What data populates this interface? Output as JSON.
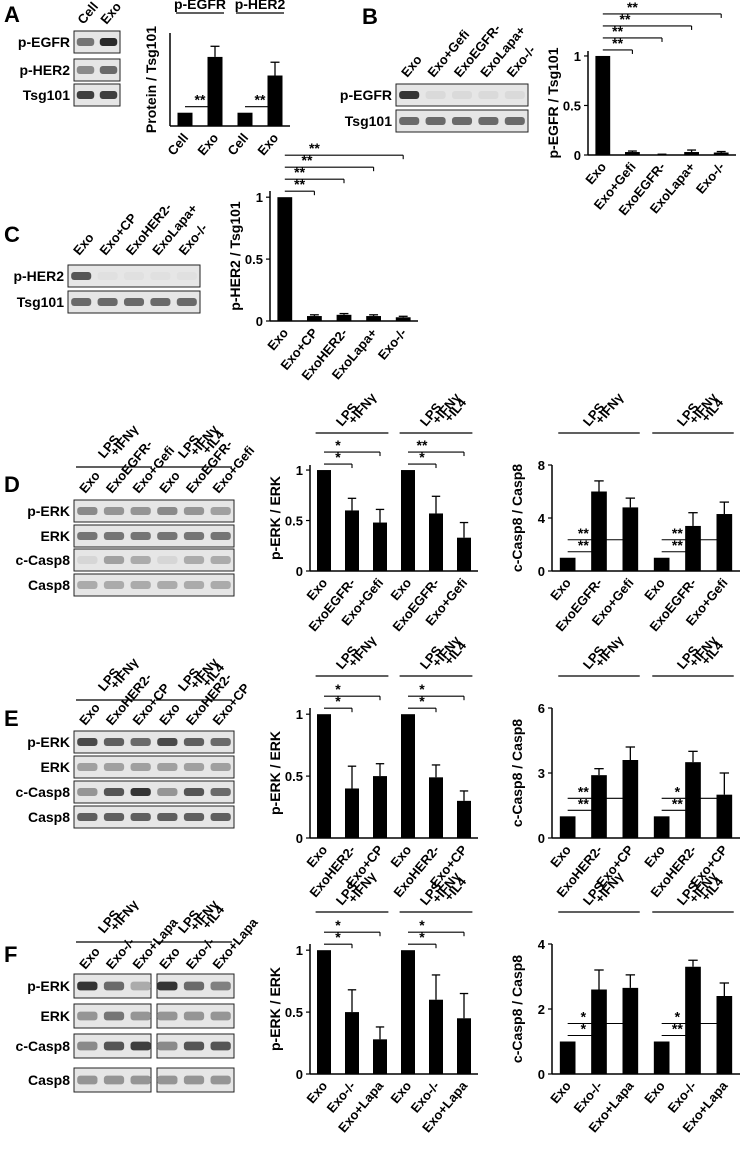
{
  "panels": [
    {
      "letter": "A",
      "blot": {
        "lanes": [
          "Cell",
          "Exo"
        ],
        "rows": [
          {
            "label": "p-EGFR",
            "bands": [
              0.55,
              0.9
            ]
          },
          {
            "label": "p-HER2",
            "bands": [
              0.45,
              0.6
            ]
          },
          {
            "label": "Tsg101",
            "bands": [
              0.8,
              0.8
            ]
          }
        ]
      },
      "charts": [
        {
          "type": "bar",
          "ylabel": "Protein / Tsg101",
          "ylim": [
            0,
            7
          ],
          "yticks": [],
          "categories": [
            "Cell",
            "Exo",
            "Cell",
            "Exo"
          ],
          "values": [
            1.0,
            5.2,
            1.0,
            3.8
          ],
          "errors": [
            0,
            0.8,
            0,
            1.0
          ],
          "groups": [
            {
              "label": "p-EGFR",
              "from": 0,
              "to": 1
            },
            {
              "label": "p-HER2",
              "from": 2,
              "to": 3
            }
          ],
          "sig": [
            {
              "a": 0,
              "b": 1,
              "mark": "**"
            },
            {
              "a": 2,
              "b": 3,
              "mark": "**"
            }
          ]
        }
      ]
    },
    {
      "letter": "B",
      "blot": {
        "lanes": [
          "Exo",
          "Exo+Gefi",
          "ExoEGFR-",
          "ExoLapa+",
          "Exo-/-"
        ],
        "rows": [
          {
            "label": "p-EGFR",
            "bands": [
              0.85,
              0.08,
              0.08,
              0.08,
              0.08
            ]
          },
          {
            "label": "Tsg101",
            "bands": [
              0.6,
              0.6,
              0.6,
              0.6,
              0.6
            ]
          }
        ]
      },
      "charts": [
        {
          "type": "bar",
          "ylabel": "p-EGFR / Tsg101",
          "ylim": [
            0,
            1.05
          ],
          "yticks": [
            0,
            0.5,
            1
          ],
          "categories": [
            "Exo",
            "Exo+Gefi",
            "ExoEGFR-",
            "ExoLapa+",
            "Exo-/-"
          ],
          "values": [
            1.0,
            0.03,
            0.005,
            0.03,
            0.025
          ],
          "errors": [
            0,
            0.01,
            0.003,
            0.02,
            0.01
          ],
          "groups": [],
          "sig": [
            {
              "a": 0,
              "b": 1,
              "mark": "**"
            },
            {
              "a": 0,
              "b": 2,
              "mark": "**"
            },
            {
              "a": 0,
              "b": 3,
              "mark": "**"
            },
            {
              "a": 0,
              "b": 4,
              "mark": "**"
            }
          ]
        }
      ]
    },
    {
      "letter": "C",
      "blot": {
        "lanes": [
          "Exo",
          "Exo+CP",
          "ExoHER2-",
          "ExoLapa+",
          "Exo-/-"
        ],
        "rows": [
          {
            "label": "p-HER2",
            "bands": [
              0.7,
              0.05,
              0.05,
              0.05,
              0.05
            ]
          },
          {
            "label": "Tsg101",
            "bands": [
              0.6,
              0.6,
              0.6,
              0.6,
              0.6
            ]
          }
        ]
      },
      "charts": [
        {
          "type": "bar",
          "ylabel": "p-HER2 / Tsg101",
          "ylim": [
            0,
            1.05
          ],
          "yticks": [
            0,
            0.5,
            1
          ],
          "categories": [
            "Exo",
            "Exo+CP",
            "ExoHER2-",
            "ExoLapa+",
            "Exo-/-"
          ],
          "values": [
            1.0,
            0.04,
            0.05,
            0.04,
            0.03
          ],
          "errors": [
            0,
            0.01,
            0.01,
            0.01,
            0.008
          ],
          "groups": [],
          "sig": [
            {
              "a": 0,
              "b": 1,
              "mark": "**"
            },
            {
              "a": 0,
              "b": 2,
              "mark": "**"
            },
            {
              "a": 0,
              "b": 3,
              "mark": "**"
            },
            {
              "a": 0,
              "b": 4,
              "mark": "**"
            }
          ]
        }
      ]
    },
    {
      "letter": "D",
      "blot": {
        "groups": [
          {
            "label": [
              "LPS",
              "+IFNγ"
            ],
            "from": 0,
            "to": 2
          },
          {
            "label": [
              "LPS",
              "+IFNγ",
              "+IL4"
            ],
            "from": 3,
            "to": 5
          }
        ],
        "lanes": [
          "Exo",
          "ExoEGFR-",
          "Exo+Gefi",
          "Exo",
          "ExoEGFR-",
          "Exo+Gefi"
        ],
        "rows": [
          {
            "label": "p-ERK",
            "bands": [
              0.45,
              0.4,
              0.4,
              0.45,
              0.4,
              0.35
            ]
          },
          {
            "label": "ERK",
            "bands": [
              0.55,
              0.55,
              0.55,
              0.55,
              0.55,
              0.55
            ]
          },
          {
            "label": "c-Casp8",
            "bands": [
              0.1,
              0.35,
              0.3,
              0.1,
              0.3,
              0.3
            ]
          },
          {
            "label": "Casp8",
            "bands": [
              0.3,
              0.3,
              0.3,
              0.3,
              0.3,
              0.3
            ]
          }
        ]
      },
      "charts": [
        {
          "type": "bar",
          "ylabel": "p-ERK / ERK",
          "ylim": [
            0,
            1.05
          ],
          "yticks": [
            0,
            0.5,
            1
          ],
          "categories": [
            "Exo",
            "ExoEGFR-",
            "Exo+Gefi",
            "Exo",
            "ExoEGFR-",
            "Exo+Gefi"
          ],
          "values": [
            1.0,
            0.6,
            0.48,
            1.0,
            0.57,
            0.33
          ],
          "errors": [
            0,
            0.12,
            0.13,
            0,
            0.17,
            0.15
          ],
          "groups": [
            {
              "label": [
                "LPS",
                "+IFNγ"
              ],
              "from": 0,
              "to": 2
            },
            {
              "label": [
                "LPS",
                "+IFNγ",
                "+IL4"
              ],
              "from": 3,
              "to": 5
            }
          ],
          "sig": [
            {
              "a": 0,
              "b": 1,
              "mark": "*"
            },
            {
              "a": 0,
              "b": 2,
              "mark": "*"
            },
            {
              "a": 3,
              "b": 4,
              "mark": "*"
            },
            {
              "a": 3,
              "b": 5,
              "mark": "**"
            }
          ]
        },
        {
          "type": "bar",
          "ylabel": "c-Casp8 / Casp8",
          "ylim": [
            0,
            8
          ],
          "yticks": [
            0,
            4,
            8
          ],
          "categories": [
            "Exo",
            "ExoEGFR-",
            "Exo+Gefi",
            "Exo",
            "ExoEGFR-",
            "Exo+Gefi"
          ],
          "values": [
            1.0,
            6.0,
            4.8,
            1.0,
            3.4,
            4.3
          ],
          "errors": [
            0,
            0.8,
            0.7,
            0,
            1.0,
            0.9
          ],
          "groups": [
            {
              "label": [
                "LPS",
                "+IFNγ"
              ],
              "from": 0,
              "to": 2
            },
            {
              "label": [
                "LPS",
                "+IFNγ",
                "+IL4"
              ],
              "from": 3,
              "to": 5
            }
          ],
          "sig": [
            {
              "a": 0,
              "b": 1,
              "mark": "**"
            },
            {
              "a": 0,
              "b": 2,
              "mark": "**"
            },
            {
              "a": 3,
              "b": 4,
              "mark": "**"
            },
            {
              "a": 3,
              "b": 5,
              "mark": "**"
            }
          ]
        }
      ]
    },
    {
      "letter": "E",
      "blot": {
        "groups": [
          {
            "label": [
              "LPS",
              "+IFNγ"
            ],
            "from": 0,
            "to": 2
          },
          {
            "label": [
              "LPS",
              "+IFNγ",
              "+IL4"
            ],
            "from": 3,
            "to": 5
          }
        ],
        "lanes": [
          "Exo",
          "ExoHER2-",
          "Exo+CP",
          "Exo",
          "ExoHER2-",
          "Exo+CP"
        ],
        "rows": [
          {
            "label": "p-ERK",
            "bands": [
              0.75,
              0.65,
              0.6,
              0.75,
              0.65,
              0.6
            ]
          },
          {
            "label": "ERK",
            "bands": [
              0.35,
              0.35,
              0.35,
              0.35,
              0.35,
              0.35
            ]
          },
          {
            "label": "c-Casp8",
            "bands": [
              0.4,
              0.7,
              0.85,
              0.4,
              0.7,
              0.6
            ]
          },
          {
            "label": "Casp8",
            "bands": [
              0.65,
              0.65,
              0.65,
              0.65,
              0.65,
              0.65
            ]
          }
        ]
      },
      "charts": [
        {
          "type": "bar",
          "ylabel": "p-ERK / ERK",
          "ylim": [
            0,
            1.05
          ],
          "yticks": [
            0,
            0.5,
            1
          ],
          "categories": [
            "Exo",
            "ExoHER2-",
            "Exo+CP",
            "Exo",
            "ExoHER2-",
            "Exo+CP"
          ],
          "values": [
            1.0,
            0.4,
            0.5,
            1.0,
            0.49,
            0.3
          ],
          "errors": [
            0,
            0.18,
            0.1,
            0,
            0.1,
            0.08
          ],
          "groups": [
            {
              "label": [
                "LPS",
                "+IFNγ"
              ],
              "from": 0,
              "to": 2
            },
            {
              "label": [
                "LPS",
                "+IFNγ",
                "+IL4"
              ],
              "from": 3,
              "to": 5
            }
          ],
          "sig": [
            {
              "a": 0,
              "b": 1,
              "mark": "*"
            },
            {
              "a": 0,
              "b": 2,
              "mark": "*"
            },
            {
              "a": 3,
              "b": 4,
              "mark": "*"
            },
            {
              "a": 3,
              "b": 5,
              "mark": "*"
            }
          ]
        },
        {
          "type": "bar",
          "ylabel": "c-Casp8 / Casp8",
          "ylim": [
            0,
            6
          ],
          "yticks": [
            0,
            3,
            6
          ],
          "categories": [
            "Exo",
            "ExoHER2-",
            "Exo+CP",
            "Exo",
            "ExoHER2-",
            "Exo+CP"
          ],
          "values": [
            1.0,
            2.9,
            3.6,
            1.0,
            3.5,
            2.0
          ],
          "errors": [
            0,
            0.3,
            0.6,
            0,
            0.5,
            1.0
          ],
          "groups": [
            {
              "label": [
                "LPS",
                "+IFNγ"
              ],
              "from": 0,
              "to": 2
            },
            {
              "label": [
                "LPS",
                "+IFNγ",
                "+IL4"
              ],
              "from": 3,
              "to": 5
            }
          ],
          "sig": [
            {
              "a": 0,
              "b": 1,
              "mark": "**"
            },
            {
              "a": 0,
              "b": 2,
              "mark": "**"
            },
            {
              "a": 3,
              "b": 4,
              "mark": "**"
            },
            {
              "a": 3,
              "b": 5,
              "mark": "*"
            }
          ]
        }
      ]
    },
    {
      "letter": "F",
      "blot": {
        "groups": [
          {
            "label": [
              "LPS",
              "+IFNγ"
            ],
            "from": 0,
            "to": 2
          },
          {
            "label": [
              "LPS",
              "+IFNγ",
              "+IL4"
            ],
            "from": 3,
            "to": 5
          }
        ],
        "lanes": [
          "Exo",
          "Exo-/-",
          "Exo+Lapa",
          "Exo",
          "Exo-/-",
          "Exo+Lapa"
        ],
        "rows": [
          {
            "label": "p-ERK",
            "bands": [
              0.85,
              0.6,
              0.3,
              0.85,
              0.6,
              0.5
            ]
          },
          {
            "label": "ERK",
            "bands": [
              0.4,
              0.55,
              0.4,
              0.4,
              0.4,
              0.4
            ]
          },
          {
            "label": "c-Casp8",
            "bands": [
              0.45,
              0.7,
              0.8,
              0.45,
              0.7,
              0.7
            ]
          },
          {
            "label": "Casp8",
            "bands": [
              0.4,
              0.4,
              0.4,
              0.4,
              0.4,
              0.4
            ]
          }
        ]
      },
      "charts": [
        {
          "type": "bar",
          "ylabel": "p-ERK / ERK",
          "ylim": [
            0,
            1.05
          ],
          "yticks": [
            0,
            0.5,
            1
          ],
          "categories": [
            "Exo",
            "Exo-/-",
            "Exo+Lapa",
            "Exo",
            "Exo-/-",
            "Exo+Lapa"
          ],
          "values": [
            1.0,
            0.5,
            0.28,
            1.0,
            0.6,
            0.45
          ],
          "errors": [
            0,
            0.18,
            0.1,
            0,
            0.2,
            0.2
          ],
          "groups": [
            {
              "label": [
                "LPS",
                "+IFNγ"
              ],
              "from": 0,
              "to": 2
            },
            {
              "label": [
                "LPS",
                "+IFNγ",
                "+IL4"
              ],
              "from": 3,
              "to": 5
            }
          ],
          "sig": [
            {
              "a": 0,
              "b": 1,
              "mark": "*"
            },
            {
              "a": 0,
              "b": 2,
              "mark": "*"
            },
            {
              "a": 3,
              "b": 4,
              "mark": "*"
            },
            {
              "a": 3,
              "b": 5,
              "mark": "*"
            }
          ]
        },
        {
          "type": "bar",
          "ylabel": "c-Casp8 / Casp8",
          "ylim": [
            0,
            4
          ],
          "yticks": [
            0,
            2,
            4
          ],
          "categories": [
            "Exo",
            "Exo-/-",
            "Exo+Lapa",
            "Exo",
            "Exo-/-",
            "Exo+Lapa"
          ],
          "values": [
            1.0,
            2.6,
            2.65,
            1.0,
            3.3,
            2.4
          ],
          "errors": [
            0,
            0.6,
            0.4,
            0,
            0.2,
            0.4
          ],
          "groups": [
            {
              "label": [
                "LPS",
                "+IFNγ"
              ],
              "from": 0,
              "to": 2
            },
            {
              "label": [
                "LPS",
                "+IFNγ",
                "+IL4"
              ],
              "from": 3,
              "to": 5
            }
          ],
          "sig": [
            {
              "a": 0,
              "b": 1,
              "mark": "*"
            },
            {
              "a": 0,
              "b": 2,
              "mark": "*"
            },
            {
              "a": 3,
              "b": 4,
              "mark": "**"
            },
            {
              "a": 3,
              "b": 5,
              "mark": "*"
            }
          ]
        }
      ]
    }
  ]
}
